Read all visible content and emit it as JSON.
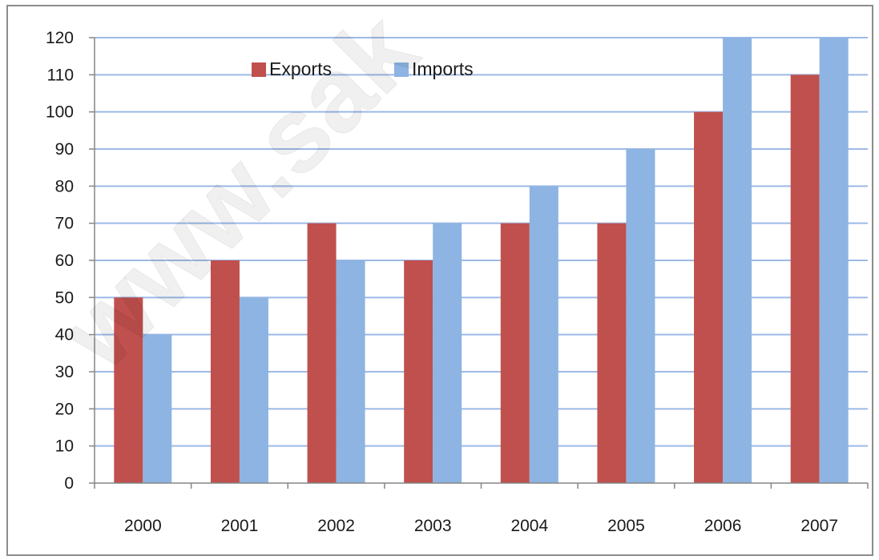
{
  "chart_data": {
    "type": "bar",
    "categories": [
      "2000",
      "2001",
      "2002",
      "2003",
      "2004",
      "2005",
      "2006",
      "2007"
    ],
    "series": [
      {
        "name": "Exports",
        "color": "#c0504d",
        "values": [
          50,
          60,
          70,
          60,
          70,
          70,
          100,
          110
        ]
      },
      {
        "name": "Imports",
        "color": "#8db4e2",
        "values": [
          40,
          50,
          60,
          70,
          80,
          90,
          120,
          120
        ]
      }
    ],
    "title": "",
    "xlabel": "",
    "ylabel": "",
    "ylim": [
      0,
      120
    ],
    "yticks": [
      0,
      10,
      20,
      30,
      40,
      50,
      60,
      70,
      80,
      90,
      100,
      110,
      120
    ],
    "grid": true,
    "grid_color": "#9db9e6",
    "legend_position": "top-center"
  },
  "watermark": "www.sak"
}
